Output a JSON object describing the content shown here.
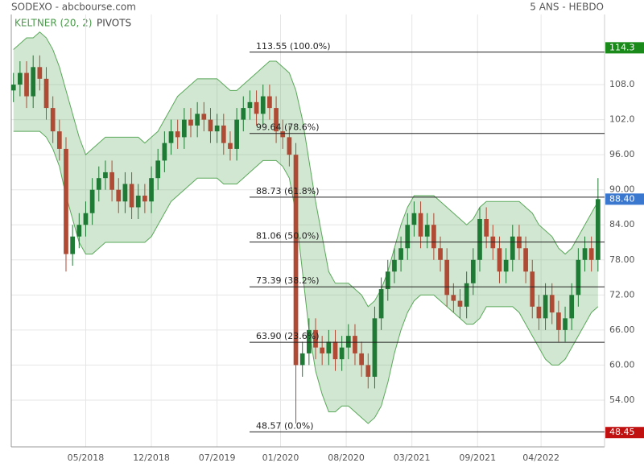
{
  "chart_data": {
    "type": "candlestick",
    "title": "SODEXO - abcbourse.com",
    "period": "5 ANS - HEBDO",
    "legend": [
      {
        "name": "KELTNER (20, 2)",
        "color": "#4a9a4a"
      },
      {
        "name": "PIVOTS",
        "color": "#444444"
      }
    ],
    "xlim": [
      -1,
      270
    ],
    "ylim": [
      46,
      120
    ],
    "xticks": [
      {
        "value": 33,
        "label": "05/2018"
      },
      {
        "value": 63,
        "label": "12/2018"
      },
      {
        "value": 93,
        "label": "07/2019"
      },
      {
        "value": 122,
        "label": "01/2020"
      },
      {
        "value": 152,
        "label": "08/2020"
      },
      {
        "value": 182,
        "label": "03/2021"
      },
      {
        "value": 212,
        "label": "09/2021"
      },
      {
        "value": 241,
        "label": "04/2022"
      }
    ],
    "yticks": [
      {
        "value": 54,
        "label": "54.00"
      },
      {
        "value": 60,
        "label": "60.00"
      },
      {
        "value": 66,
        "label": "66.00"
      },
      {
        "value": 72,
        "label": "72.00"
      },
      {
        "value": 78,
        "label": "78.00"
      },
      {
        "value": 84,
        "label": "84.00"
      },
      {
        "value": 90,
        "label": "90.00"
      },
      {
        "value": 96,
        "label": "96.00"
      },
      {
        "value": 102,
        "label": "102.0"
      },
      {
        "value": 108,
        "label": "108.0"
      }
    ],
    "grid": true,
    "up_color": "#1f7a35",
    "down_color": "#b04a34",
    "band_color": "#5aa85a",
    "x": [
      0,
      3,
      6,
      9,
      12,
      15,
      18,
      21,
      24,
      27,
      30,
      33,
      36,
      39,
      42,
      45,
      48,
      51,
      54,
      57,
      60,
      63,
      66,
      69,
      72,
      75,
      78,
      81,
      84,
      87,
      90,
      93,
      96,
      99,
      102,
      105,
      108,
      111,
      114,
      117,
      120,
      123,
      126,
      129,
      132,
      135,
      138,
      141,
      144,
      147,
      150,
      153,
      156,
      159,
      162,
      165,
      168,
      171,
      174,
      177,
      180,
      183,
      186,
      189,
      192,
      195,
      198,
      201,
      204,
      207,
      210,
      213,
      216,
      219,
      222,
      225,
      228,
      231,
      234,
      237,
      240,
      243,
      246,
      249,
      252,
      255,
      258,
      261,
      264,
      267
    ],
    "open": [
      107,
      108,
      110,
      106,
      111,
      109,
      104,
      100,
      97,
      79,
      82,
      84,
      86,
      90,
      92,
      93,
      90,
      88,
      91,
      87,
      89,
      88,
      92,
      95,
      98,
      100,
      99,
      102,
      101,
      103,
      102,
      100,
      101,
      98,
      97,
      102,
      104,
      105,
      103,
      106,
      104,
      100,
      99,
      96,
      60,
      62,
      66,
      63,
      62,
      64,
      61,
      63,
      65,
      62,
      60,
      58,
      68,
      73,
      76,
      78,
      80,
      84,
      86,
      82,
      84,
      80,
      78,
      72,
      71,
      70,
      74,
      78,
      85,
      82,
      80,
      76,
      78,
      82,
      80,
      76,
      70,
      68,
      72,
      69,
      66,
      68,
      72,
      78,
      80,
      78
    ],
    "high": [
      110,
      112,
      112,
      113,
      113,
      111,
      106,
      102,
      99,
      84,
      86,
      88,
      92,
      94,
      95,
      95,
      92,
      93,
      93,
      91,
      91,
      94,
      97,
      100,
      102,
      102,
      104,
      104,
      105,
      105,
      104,
      103,
      103,
      100,
      104,
      106,
      107,
      107,
      108,
      108,
      106,
      102,
      101,
      98,
      64,
      68,
      68,
      65,
      66,
      66,
      65,
      67,
      67,
      64,
      62,
      70,
      75,
      78,
      80,
      82,
      86,
      88,
      88,
      86,
      86,
      82,
      80,
      74,
      73,
      76,
      80,
      87,
      87,
      84,
      82,
      80,
      84,
      84,
      82,
      78,
      72,
      74,
      74,
      71,
      70,
      74,
      80,
      82,
      82,
      92
    ],
    "low": [
      105,
      106,
      104,
      104,
      107,
      102,
      98,
      95,
      76,
      77,
      80,
      82,
      84,
      88,
      90,
      88,
      86,
      86,
      85,
      85,
      86,
      86,
      90,
      93,
      96,
      97,
      97,
      99,
      99,
      100,
      98,
      98,
      96,
      95,
      95,
      100,
      102,
      101,
      101,
      102,
      98,
      97,
      94,
      50,
      58,
      60,
      61,
      60,
      60,
      59,
      59,
      61,
      60,
      58,
      56,
      56,
      66,
      71,
      74,
      76,
      78,
      82,
      80,
      80,
      78,
      76,
      70,
      69,
      68,
      68,
      72,
      76,
      80,
      78,
      74,
      74,
      76,
      78,
      74,
      68,
      66,
      66,
      67,
      64,
      64,
      66,
      70,
      76,
      76,
      76
    ],
    "close": [
      108,
      110,
      106,
      111,
      109,
      104,
      100,
      97,
      79,
      82,
      84,
      86,
      90,
      92,
      93,
      90,
      88,
      91,
      87,
      89,
      88,
      92,
      95,
      98,
      100,
      99,
      102,
      101,
      103,
      102,
      100,
      101,
      98,
      97,
      102,
      104,
      105,
      103,
      106,
      104,
      100,
      99,
      96,
      60,
      62,
      66,
      63,
      62,
      64,
      61,
      63,
      65,
      62,
      60,
      58,
      68,
      73,
      76,
      78,
      80,
      84,
      86,
      82,
      84,
      80,
      78,
      72,
      71,
      70,
      74,
      78,
      85,
      82,
      80,
      76,
      78,
      82,
      80,
      76,
      70,
      68,
      72,
      69,
      66,
      68,
      72,
      78,
      80,
      78,
      88.4
    ],
    "keltner": {
      "upper": [
        114,
        115,
        116,
        116,
        117,
        116,
        114,
        111,
        107,
        103,
        99,
        96,
        97,
        98,
        99,
        99,
        99,
        99,
        99,
        99,
        98,
        99,
        100,
        102,
        104,
        106,
        107,
        108,
        109,
        109,
        109,
        109,
        108,
        107,
        107,
        108,
        109,
        110,
        111,
        112,
        112,
        111,
        110,
        107,
        102,
        95,
        88,
        82,
        76,
        74,
        74,
        74,
        73,
        72,
        70,
        71,
        73,
        76,
        80,
        84,
        87,
        89,
        89,
        89,
        89,
        88,
        87,
        86,
        85,
        84,
        85,
        87,
        88,
        88,
        88,
        88,
        88,
        88,
        87,
        86,
        84,
        83,
        82,
        80,
        79,
        80,
        82,
        84,
        86,
        88
      ],
      "lower": [
        100,
        100,
        100,
        100,
        100,
        99,
        97,
        94,
        89,
        85,
        81,
        79,
        79,
        80,
        81,
        81,
        81,
        81,
        81,
        81,
        81,
        82,
        84,
        86,
        88,
        89,
        90,
        91,
        92,
        92,
        92,
        92,
        91,
        91,
        91,
        92,
        93,
        94,
        95,
        95,
        95,
        94,
        92,
        86,
        76,
        66,
        59,
        55,
        52,
        52,
        53,
        53,
        52,
        51,
        50,
        51,
        53,
        57,
        62,
        66,
        69,
        71,
        72,
        72,
        72,
        71,
        70,
        69,
        68,
        67,
        67,
        68,
        70,
        70,
        70,
        70,
        70,
        69,
        67,
        65,
        63,
        61,
        60,
        60,
        61,
        63,
        65,
        67,
        69,
        70
      ]
    },
    "pivots": [
      {
        "value": 113.55,
        "label": "113.55  (100.0%)"
      },
      {
        "value": 99.64,
        "label": "99.64  (78.6%)"
      },
      {
        "value": 88.73,
        "label": "88.73  (61.8%)"
      },
      {
        "value": 81.06,
        "label": "81.06  (50.0%)"
      },
      {
        "value": 73.39,
        "label": "73.39  (38.2%)"
      },
      {
        "value": 63.9,
        "label": "63.90  (23.6%)"
      },
      {
        "value": 48.57,
        "label": "48.57  (0.0%)"
      }
    ],
    "markers": [
      {
        "value": 114.3,
        "label": "114.3",
        "color": "#1a8a1a"
      },
      {
        "value": 88.4,
        "label": "88.40",
        "color": "#3a78d0"
      },
      {
        "value": 48.45,
        "label": "48.45",
        "color": "#c01010"
      }
    ]
  }
}
